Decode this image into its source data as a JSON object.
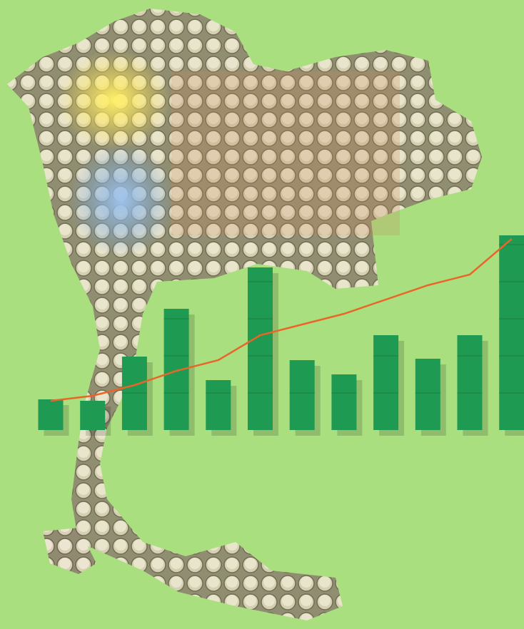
{
  "chart_data": {
    "type": "bar",
    "categories": [
      null,
      null,
      null,
      null,
      null,
      null,
      null,
      null,
      null,
      null,
      null,
      null
    ],
    "values": [
      43,
      41,
      103,
      170,
      70,
      228,
      98,
      78,
      133,
      100,
      133,
      273
    ],
    "color": "#1f9a52",
    "line": {
      "color": "#e8662a",
      "values": [
        41,
        48,
        63,
        83,
        98,
        133,
        148,
        163,
        183,
        203,
        218,
        268
      ]
    },
    "ylim": [
      0,
      280
    ]
  }
}
